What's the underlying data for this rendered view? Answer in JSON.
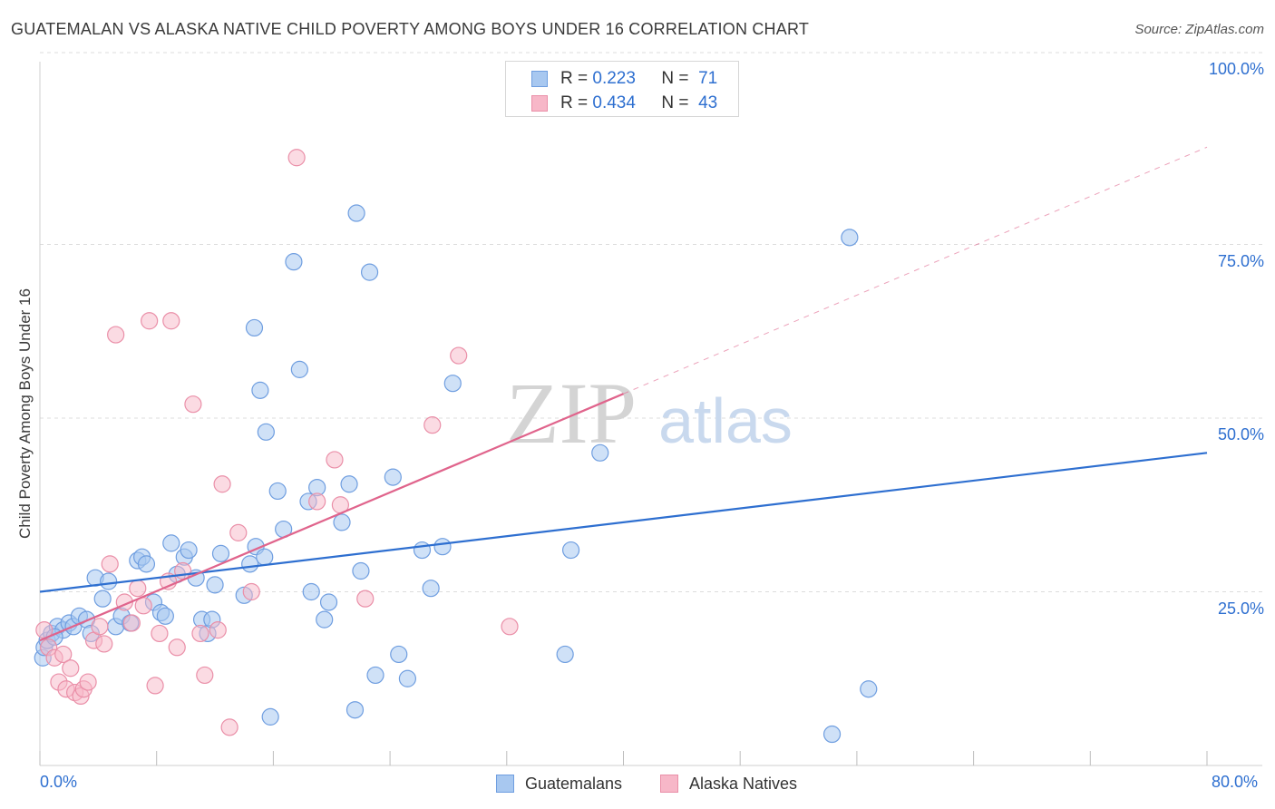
{
  "title": "GUATEMALAN VS ALASKA NATIVE CHILD POVERTY AMONG BOYS UNDER 16 CORRELATION CHART",
  "source": "Source: ZipAtlas.com",
  "watermark": {
    "zip": "ZIP",
    "atlas": "atlas"
  },
  "legend": {
    "rows": [
      {
        "r_label": "R =",
        "r_value": "0.223",
        "n_label": "N =",
        "n_value": "71"
      },
      {
        "r_label": "R =",
        "r_value": "0.434",
        "n_label": "N =",
        "n_value": "43"
      }
    ]
  },
  "bottom_legend": [
    "Guatemalans",
    "Alaska Natives"
  ],
  "colors": {
    "blue_fill": "#a8c8f0",
    "blue_stroke": "#6f9ee0",
    "blue_line": "#2e6fd0",
    "pink_fill": "#f7b7c8",
    "pink_stroke": "#ea8fa8",
    "pink_line": "#e0648c",
    "tick_text": "#2e6fd0",
    "grid": "#dcdcdc"
  },
  "chart_data": {
    "type": "scatter",
    "title": "GUATEMALAN VS ALASKA NATIVE CHILD POVERTY AMONG BOYS UNDER 16 CORRELATION CHART",
    "xlabel": "",
    "ylabel": "Child Poverty Among Boys Under 16",
    "xlim": [
      0,
      80
    ],
    "ylim": [
      0,
      100
    ],
    "x_tick_labels": [
      "0.0%",
      "80.0%"
    ],
    "y_tick_labels": [
      "25.0%",
      "50.0%",
      "75.0%",
      "100.0%"
    ],
    "y_ticks": [
      25,
      50,
      75,
      100
    ],
    "series": [
      {
        "name": "Guatemalans",
        "r": 0.223,
        "n": 71,
        "trend": {
          "x0": 0,
          "y0": 25.0,
          "x1": 80,
          "y1": 45.0,
          "style": "solid"
        },
        "points": [
          [
            0.2,
            15.5
          ],
          [
            0.3,
            17.0
          ],
          [
            0.5,
            18.0
          ],
          [
            0.8,
            19.0
          ],
          [
            1.2,
            20.0
          ],
          [
            1.6,
            19.5
          ],
          [
            2.0,
            20.5
          ],
          [
            2.3,
            20.0
          ],
          [
            2.7,
            21.5
          ],
          [
            3.2,
            21.0
          ],
          [
            3.8,
            27.0
          ],
          [
            4.3,
            24.0
          ],
          [
            4.7,
            26.5
          ],
          [
            5.2,
            20.0
          ],
          [
            5.6,
            21.5
          ],
          [
            6.2,
            20.5
          ],
          [
            6.7,
            29.5
          ],
          [
            7.0,
            30.0
          ],
          [
            7.3,
            29.0
          ],
          [
            7.8,
            23.5
          ],
          [
            8.3,
            22.0
          ],
          [
            8.6,
            21.5
          ],
          [
            9.0,
            32.0
          ],
          [
            9.4,
            27.5
          ],
          [
            9.9,
            30.0
          ],
          [
            10.2,
            31.0
          ],
          [
            10.7,
            27.0
          ],
          [
            11.1,
            21.0
          ],
          [
            11.5,
            19.0
          ],
          [
            12.0,
            26.0
          ],
          [
            12.4,
            30.5
          ],
          [
            14.0,
            24.5
          ],
          [
            14.4,
            29.0
          ],
          [
            14.8,
            31.5
          ],
          [
            15.4,
            30.0
          ],
          [
            15.8,
            7.0
          ],
          [
            16.3,
            39.5
          ],
          [
            16.7,
            34.0
          ],
          [
            17.4,
            72.5
          ],
          [
            18.6,
            25.0
          ],
          [
            19.0,
            40.0
          ],
          [
            18.4,
            38.0
          ],
          [
            19.5,
            21.0
          ],
          [
            19.8,
            23.5
          ],
          [
            20.7,
            35.0
          ],
          [
            21.2,
            40.5
          ],
          [
            21.6,
            8.0
          ],
          [
            22.0,
            28.0
          ],
          [
            22.6,
            71.0
          ],
          [
            21.7,
            79.5
          ],
          [
            23.0,
            13.0
          ],
          [
            24.2,
            41.5
          ],
          [
            24.6,
            16.0
          ],
          [
            25.2,
            12.5
          ],
          [
            26.2,
            31.0
          ],
          [
            26.8,
            25.5
          ],
          [
            27.6,
            31.5
          ],
          [
            28.3,
            55.0
          ],
          [
            36.0,
            16.0
          ],
          [
            36.4,
            31.0
          ],
          [
            38.4,
            45.0
          ],
          [
            14.7,
            63.0
          ],
          [
            17.8,
            57.0
          ],
          [
            15.1,
            54.0
          ],
          [
            11.8,
            21.0
          ],
          [
            15.5,
            48.0
          ],
          [
            55.5,
            76.0
          ],
          [
            56.8,
            11.0
          ],
          [
            54.3,
            4.5
          ],
          [
            3.5,
            19.0
          ],
          [
            1.0,
            18.5
          ]
        ]
      },
      {
        "name": "Alaska Natives",
        "r": 0.434,
        "n": 43,
        "trend": {
          "x0": 0,
          "y0": 18.0,
          "x1": 40,
          "y1": 53.5,
          "dashed_to_x": 80,
          "dashed_to_y": 89.0
        },
        "points": [
          [
            0.3,
            19.5
          ],
          [
            0.6,
            17.0
          ],
          [
            1.0,
            15.5
          ],
          [
            1.3,
            12.0
          ],
          [
            1.6,
            16.0
          ],
          [
            1.8,
            11.0
          ],
          [
            2.1,
            14.0
          ],
          [
            2.4,
            10.5
          ],
          [
            2.8,
            10.0
          ],
          [
            3.0,
            11.0
          ],
          [
            3.3,
            12.0
          ],
          [
            3.7,
            18.0
          ],
          [
            4.1,
            20.0
          ],
          [
            4.4,
            17.5
          ],
          [
            4.8,
            29.0
          ],
          [
            5.2,
            62.0
          ],
          [
            5.8,
            23.5
          ],
          [
            6.3,
            20.5
          ],
          [
            6.7,
            25.5
          ],
          [
            7.1,
            23.0
          ],
          [
            7.5,
            64.0
          ],
          [
            7.9,
            11.5
          ],
          [
            8.2,
            19.0
          ],
          [
            8.8,
            26.5
          ],
          [
            9.0,
            64.0
          ],
          [
            9.4,
            17.0
          ],
          [
            9.8,
            28.0
          ],
          [
            10.5,
            52.0
          ],
          [
            11.0,
            19.0
          ],
          [
            11.3,
            13.0
          ],
          [
            12.5,
            40.5
          ],
          [
            13.0,
            5.5
          ],
          [
            13.6,
            33.5
          ],
          [
            14.5,
            25.0
          ],
          [
            17.6,
            87.5
          ],
          [
            19.0,
            38.0
          ],
          [
            20.2,
            44.0
          ],
          [
            20.6,
            37.5
          ],
          [
            22.3,
            24.0
          ],
          [
            26.9,
            49.0
          ],
          [
            28.7,
            59.0
          ],
          [
            32.2,
            20.0
          ],
          [
            12.2,
            19.5
          ]
        ]
      }
    ]
  }
}
